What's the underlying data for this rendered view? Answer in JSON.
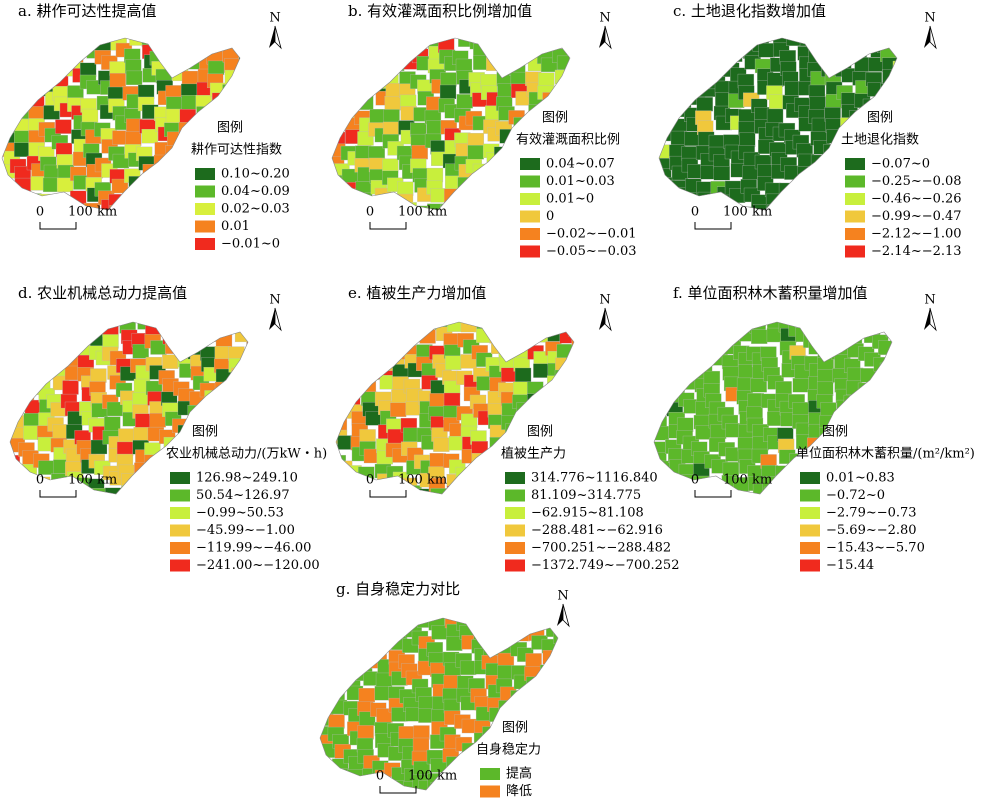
{
  "panels": [
    {
      "title": "a. 耕作可达性提高值",
      "legend_heading": "图例",
      "legend_title": "耕作可达性指数",
      "items": [
        {
          "label": "0.10~0.20",
          "color": "#1d6b1d"
        },
        {
          "label": "0.04~0.09",
          "color": "#5cb82a"
        },
        {
          "label": "0.02~0.03",
          "color": "#d8ef3c"
        },
        {
          "label": "0.01",
          "color": "#f5821f"
        },
        {
          "label": "−0.01~0",
          "color": "#f02a1e"
        }
      ]
    },
    {
      "title": "b. 有效灌溉面积比例增加值",
      "legend_heading": "图例",
      "legend_title": "有效灌溉面积比例",
      "items": [
        {
          "label": "0.04~0.07",
          "color": "#1d6b1d"
        },
        {
          "label": "0.01~0.03",
          "color": "#5cb82a"
        },
        {
          "label": "0.01~0",
          "color": "#c8ef3c"
        },
        {
          "label": "0",
          "color": "#f0c83c"
        },
        {
          "label": "−0.02~−0.01",
          "color": "#f5821f"
        },
        {
          "label": "−0.05~−0.03",
          "color": "#f02a1e"
        }
      ]
    },
    {
      "title": "c. 土地退化指数增加值",
      "legend_heading": "图例",
      "legend_title": "土地退化指数",
      "items": [
        {
          "label": "−0.07~0",
          "color": "#1d6b1d"
        },
        {
          "label": "−0.25~−0.08",
          "color": "#5cb82a"
        },
        {
          "label": "−0.46~−0.26",
          "color": "#c8ef3c"
        },
        {
          "label": "−0.99~−0.47",
          "color": "#f0c83c"
        },
        {
          "label": "−2.12~−1.00",
          "color": "#f5821f"
        },
        {
          "label": "−2.14~−2.13",
          "color": "#f02a1e"
        }
      ]
    },
    {
      "title": "d. 农业机械总动力提高值",
      "legend_heading": "图例",
      "legend_title": "农业机械总动力/(万kW・h)",
      "items": [
        {
          "label": "126.98~249.10",
          "color": "#1d6b1d"
        },
        {
          "label": "50.54~126.97",
          "color": "#5cb82a"
        },
        {
          "label": "−0.99~50.53",
          "color": "#c8ef3c"
        },
        {
          "label": "−45.99~−1.00",
          "color": "#f0c83c"
        },
        {
          "label": "−119.99~−46.00",
          "color": "#f5821f"
        },
        {
          "label": "−241.00~−120.00",
          "color": "#f02a1e"
        }
      ]
    },
    {
      "title": "e. 植被生产力增加值",
      "legend_heading": "图例",
      "legend_title": "植被生产力",
      "items": [
        {
          "label": "314.776~1116.840",
          "color": "#1d6b1d"
        },
        {
          "label": "81.109~314.775",
          "color": "#5cb82a"
        },
        {
          "label": "−62.915~81.108",
          "color": "#c8ef3c"
        },
        {
          "label": "−288.481~−62.916",
          "color": "#f0c83c"
        },
        {
          "label": "−700.251~−288.482",
          "color": "#f5821f"
        },
        {
          "label": "−1372.749~−700.252",
          "color": "#f02a1e"
        }
      ]
    },
    {
      "title": "f. 单位面积林木蓄积量增加值",
      "legend_heading": "图例",
      "legend_title": "单位面积林木蓄积量/(m²/km²)",
      "items": [
        {
          "label": "0.01~0.83",
          "color": "#1d6b1d"
        },
        {
          "label": "−0.72~0",
          "color": "#5cb82a"
        },
        {
          "label": "−2.79~−0.73",
          "color": "#c8ef3c"
        },
        {
          "label": "−5.69~−2.80",
          "color": "#f0c83c"
        },
        {
          "label": "−15.43~−5.70",
          "color": "#f5821f"
        },
        {
          "label": "−15.44",
          "color": "#f02a1e"
        }
      ]
    },
    {
      "title": "g. 自身稳定力对比",
      "legend_heading": "图例",
      "legend_title": "自身稳定力",
      "items": [
        {
          "label": "提高",
          "color": "#5cb82a"
        },
        {
          "label": "降低",
          "color": "#f5821f"
        }
      ]
    }
  ],
  "north": "N",
  "scale": {
    "zero": "0",
    "label": "100 km"
  }
}
